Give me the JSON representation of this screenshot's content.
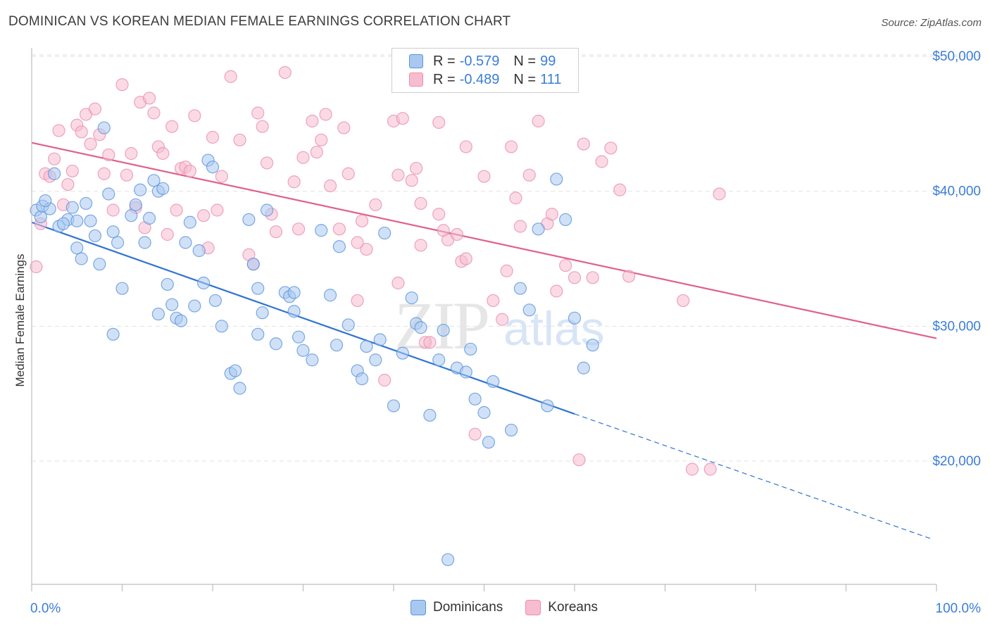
{
  "header": {
    "title": "DOMINICAN VS KOREAN MEDIAN FEMALE EARNINGS CORRELATION CHART",
    "source": "Source: ZipAtlas.com"
  },
  "legend": {
    "rows": [
      {
        "r_label": "R =",
        "r_value": "-0.579",
        "n_label": "N =",
        "n_value": "99"
      },
      {
        "r_label": "R =",
        "r_value": "-0.489",
        "n_label": "N =",
        "n_value": "111"
      }
    ],
    "bottom": [
      "Dominicans",
      "Koreans"
    ]
  },
  "colors": {
    "dominicans_fill": "#a9c8f0",
    "dominicans_stroke": "#5b95dd",
    "dominicans_line": "#2f74d0",
    "koreans_fill": "#f7bcd0",
    "koreans_stroke": "#e98fae",
    "koreans_line": "#e0608c",
    "axis_label": "#3b7dd8"
  },
  "watermark": {
    "zip": "ZIP",
    "atlas": "atlas"
  },
  "chart_data": {
    "type": "scatter",
    "title": "DOMINICAN VS KOREAN MEDIAN FEMALE EARNINGS CORRELATION CHART",
    "xlabel": "",
    "ylabel": "Median Female Earnings",
    "xlim": [
      0,
      100
    ],
    "ylim": [
      10000,
      52000
    ],
    "x_tick_labels": [
      "0.0%",
      "100.0%"
    ],
    "y_ticks": [
      20000,
      30000,
      40000,
      50000
    ],
    "y_tick_labels": [
      "$20,000",
      "$30,000",
      "$40,000",
      "$50,000"
    ],
    "grid": true,
    "legend_position": "top-center",
    "series": [
      {
        "name": "Dominicans",
        "r": -0.579,
        "n": 99,
        "trend": {
          "x0": 0,
          "y0": 37700,
          "x1": 60,
          "y1": 23500,
          "dashed_to_x": 100,
          "dashed_to_y": 14200
        },
        "points": [
          [
            0.5,
            38600
          ],
          [
            1,
            38100
          ],
          [
            1.2,
            38900
          ],
          [
            2,
            38700
          ],
          [
            1.5,
            39300
          ],
          [
            2.5,
            41300
          ],
          [
            4,
            37900
          ],
          [
            4.5,
            38800
          ],
          [
            3,
            37400
          ],
          [
            3.5,
            37600
          ],
          [
            5,
            35800
          ],
          [
            6,
            39100
          ],
          [
            5.5,
            35000
          ],
          [
            7,
            36700
          ],
          [
            6.5,
            37800
          ],
          [
            7.5,
            34600
          ],
          [
            8,
            44700
          ],
          [
            8.5,
            39800
          ],
          [
            9,
            37000
          ],
          [
            9.5,
            36200
          ],
          [
            10,
            32800
          ],
          [
            11,
            38200
          ],
          [
            11.5,
            39000
          ],
          [
            12,
            40100
          ],
          [
            12.5,
            36200
          ],
          [
            13,
            38000
          ],
          [
            13.5,
            40800
          ],
          [
            14,
            40000
          ],
          [
            14.5,
            40200
          ],
          [
            15,
            33100
          ],
          [
            15.5,
            31600
          ],
          [
            16,
            30600
          ],
          [
            16.5,
            30400
          ],
          [
            17,
            36200
          ],
          [
            17.5,
            37700
          ],
          [
            18,
            31500
          ],
          [
            18.5,
            35600
          ],
          [
            19,
            33200
          ],
          [
            19.5,
            42300
          ],
          [
            20,
            41800
          ],
          [
            21,
            30000
          ],
          [
            22,
            26500
          ],
          [
            22.5,
            26700
          ],
          [
            23,
            25400
          ],
          [
            24,
            37900
          ],
          [
            24.5,
            34600
          ],
          [
            25,
            32800
          ],
          [
            25.5,
            31000
          ],
          [
            26,
            38600
          ],
          [
            27,
            28700
          ],
          [
            28,
            32500
          ],
          [
            28.5,
            32200
          ],
          [
            29,
            31100
          ],
          [
            29.5,
            29200
          ],
          [
            30,
            28200
          ],
          [
            31,
            27500
          ],
          [
            32,
            37100
          ],
          [
            33,
            32300
          ],
          [
            34,
            35900
          ],
          [
            35,
            30100
          ],
          [
            36,
            26700
          ],
          [
            37,
            28500
          ],
          [
            38,
            27500
          ],
          [
            38.5,
            29000
          ],
          [
            39,
            36900
          ],
          [
            40,
            24100
          ],
          [
            41,
            28000
          ],
          [
            42,
            32100
          ],
          [
            42.5,
            30200
          ],
          [
            43,
            29900
          ],
          [
            44,
            23400
          ],
          [
            45,
            27500
          ],
          [
            45.5,
            29700
          ],
          [
            46,
            12700
          ],
          [
            47,
            26900
          ],
          [
            48,
            26600
          ],
          [
            49,
            24600
          ],
          [
            50,
            23600
          ],
          [
            50.5,
            21400
          ],
          [
            51,
            25900
          ],
          [
            53,
            22300
          ],
          [
            54,
            32800
          ],
          [
            55,
            31200
          ],
          [
            56,
            37200
          ],
          [
            57,
            24100
          ],
          [
            58,
            40900
          ],
          [
            59,
            37900
          ],
          [
            60,
            30600
          ],
          [
            61,
            26900
          ],
          [
            62,
            28600
          ],
          [
            14,
            30900
          ],
          [
            25,
            29400
          ],
          [
            29,
            32500
          ],
          [
            9,
            29400
          ],
          [
            20.3,
            31900
          ],
          [
            33.7,
            28600
          ],
          [
            36.5,
            26100
          ],
          [
            48.5,
            28300
          ],
          [
            5,
            37800
          ]
        ]
      },
      {
        "name": "Koreans",
        "r": -0.489,
        "n": 111,
        "trend": {
          "x0": 0,
          "y0": 43600,
          "x1": 100,
          "y1": 29100
        },
        "points": [
          [
            0.5,
            34400
          ],
          [
            1,
            37600
          ],
          [
            1.5,
            41300
          ],
          [
            2,
            41100
          ],
          [
            2.5,
            42400
          ],
          [
            3,
            44500
          ],
          [
            3.5,
            39000
          ],
          [
            4,
            40500
          ],
          [
            4.5,
            41500
          ],
          [
            5,
            44900
          ],
          [
            5.5,
            44400
          ],
          [
            6,
            45700
          ],
          [
            6.5,
            43500
          ],
          [
            7,
            46100
          ],
          [
            7.5,
            44200
          ],
          [
            8,
            41300
          ],
          [
            8.5,
            42700
          ],
          [
            9,
            38600
          ],
          [
            10,
            47900
          ],
          [
            10.5,
            41200
          ],
          [
            11,
            42800
          ],
          [
            11.5,
            38800
          ],
          [
            12,
            46600
          ],
          [
            12.5,
            37300
          ],
          [
            13,
            46900
          ],
          [
            13.5,
            45800
          ],
          [
            14,
            43300
          ],
          [
            14.5,
            42800
          ],
          [
            15,
            36800
          ],
          [
            15.5,
            44800
          ],
          [
            16,
            38600
          ],
          [
            16.5,
            41700
          ],
          [
            17,
            41800
          ],
          [
            17.5,
            41500
          ],
          [
            18,
            45600
          ],
          [
            19,
            38200
          ],
          [
            19.5,
            35800
          ],
          [
            20,
            44000
          ],
          [
            20.5,
            38600
          ],
          [
            21,
            41100
          ],
          [
            22,
            48500
          ],
          [
            23,
            43800
          ],
          [
            24,
            35300
          ],
          [
            24.5,
            34600
          ],
          [
            25,
            45800
          ],
          [
            25.5,
            44800
          ],
          [
            26,
            42100
          ],
          [
            26.5,
            38300
          ],
          [
            27,
            37000
          ],
          [
            28,
            48800
          ],
          [
            29,
            40700
          ],
          [
            29.5,
            37200
          ],
          [
            30,
            42500
          ],
          [
            31,
            45200
          ],
          [
            31.5,
            42900
          ],
          [
            32,
            43800
          ],
          [
            32.5,
            45700
          ],
          [
            33,
            40400
          ],
          [
            34,
            37200
          ],
          [
            34.5,
            44700
          ],
          [
            35,
            41300
          ],
          [
            36,
            31900
          ],
          [
            36.5,
            37800
          ],
          [
            37,
            35700
          ],
          [
            38,
            39000
          ],
          [
            39,
            26000
          ],
          [
            40,
            45200
          ],
          [
            40.5,
            41200
          ],
          [
            41,
            45400
          ],
          [
            42,
            40800
          ],
          [
            42.5,
            41700
          ],
          [
            43,
            36000
          ],
          [
            43.5,
            28800
          ],
          [
            44,
            28800
          ],
          [
            45,
            38300
          ],
          [
            45.5,
            37100
          ],
          [
            46,
            36400
          ],
          [
            47,
            36800
          ],
          [
            47.5,
            34800
          ],
          [
            48,
            35000
          ],
          [
            49,
            22000
          ],
          [
            50,
            41100
          ],
          [
            51,
            31900
          ],
          [
            52,
            30500
          ],
          [
            52.5,
            34100
          ],
          [
            53,
            43300
          ],
          [
            53.5,
            39500
          ],
          [
            54,
            37400
          ],
          [
            55,
            41200
          ],
          [
            56,
            45200
          ],
          [
            57,
            37600
          ],
          [
            57.5,
            38300
          ],
          [
            58,
            32600
          ],
          [
            59,
            34500
          ],
          [
            60,
            33600
          ],
          [
            60.5,
            20100
          ],
          [
            61,
            43500
          ],
          [
            62,
            33600
          ],
          [
            63,
            42200
          ],
          [
            64,
            43200
          ],
          [
            65,
            40100
          ],
          [
            66,
            33700
          ],
          [
            72,
            31900
          ],
          [
            73,
            19400
          ],
          [
            75,
            19400
          ],
          [
            76,
            39800
          ],
          [
            36,
            36200
          ],
          [
            48,
            43300
          ],
          [
            43,
            39100
          ],
          [
            40.5,
            33200
          ],
          [
            45,
            45100
          ]
        ]
      }
    ]
  }
}
